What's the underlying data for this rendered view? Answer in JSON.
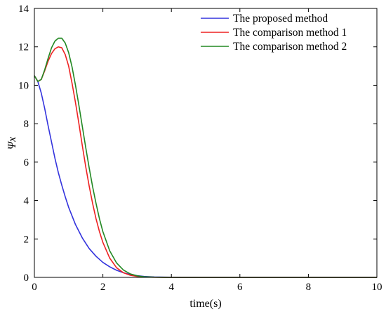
{
  "chart_data": {
    "type": "line",
    "title": "",
    "xlabel": "time(s)",
    "ylabel": "Ψx",
    "xlim": [
      0,
      10
    ],
    "ylim": [
      0,
      14
    ],
    "xticks": [
      0,
      2,
      4,
      6,
      8,
      10
    ],
    "yticks": [
      0,
      2,
      4,
      6,
      8,
      10,
      12,
      14
    ],
    "grid": false,
    "legend_position": "top-right",
    "series": [
      {
        "name": "The proposed method",
        "color": "#3333dd",
        "x": [
          0,
          0.1,
          0.2,
          0.3,
          0.4,
          0.5,
          0.6,
          0.7,
          0.8,
          0.9,
          1.0,
          1.2,
          1.4,
          1.6,
          1.8,
          2.0,
          2.2,
          2.4,
          2.6,
          2.8,
          3.0,
          3.2,
          3.5,
          3.8,
          4.0,
          5.0,
          6.0,
          8.0,
          10.0
        ],
        "y": [
          10.5,
          10.2,
          9.6,
          8.8,
          7.9,
          7.05,
          6.2,
          5.45,
          4.8,
          4.2,
          3.65,
          2.75,
          2.05,
          1.5,
          1.1,
          0.78,
          0.55,
          0.37,
          0.24,
          0.15,
          0.09,
          0.05,
          0.02,
          0.01,
          0.005,
          0,
          0,
          0,
          0
        ]
      },
      {
        "name": "The comparison method 1",
        "color": "#ee2222",
        "x": [
          0,
          0.1,
          0.2,
          0.3,
          0.4,
          0.5,
          0.6,
          0.7,
          0.8,
          0.9,
          1.0,
          1.1,
          1.2,
          1.3,
          1.4,
          1.5,
          1.6,
          1.7,
          1.8,
          1.9,
          2.0,
          2.2,
          2.4,
          2.6,
          2.8,
          3.0,
          3.2,
          3.5,
          3.8,
          4.0,
          5.0,
          6.0,
          8.0,
          10.0
        ],
        "y": [
          10.5,
          10.2,
          10.3,
          10.75,
          11.25,
          11.65,
          11.9,
          12.0,
          11.95,
          11.6,
          11.0,
          10.1,
          9.1,
          8.0,
          6.85,
          5.75,
          4.75,
          3.85,
          3.05,
          2.38,
          1.82,
          1.0,
          0.5,
          0.24,
          0.11,
          0.05,
          0.02,
          0.005,
          0.001,
          0,
          0,
          0,
          0,
          0
        ]
      },
      {
        "name": "The comparison method 2",
        "color": "#228822",
        "x": [
          0,
          0.1,
          0.2,
          0.3,
          0.4,
          0.5,
          0.6,
          0.7,
          0.8,
          0.9,
          1.0,
          1.1,
          1.2,
          1.3,
          1.4,
          1.5,
          1.6,
          1.7,
          1.8,
          1.9,
          2.0,
          2.2,
          2.4,
          2.6,
          2.8,
          3.0,
          3.2,
          3.5,
          3.8,
          4.0,
          5.0,
          6.0,
          8.0,
          10.0
        ],
        "y": [
          10.5,
          10.2,
          10.3,
          10.8,
          11.4,
          11.95,
          12.3,
          12.45,
          12.45,
          12.2,
          11.7,
          10.95,
          10.0,
          8.95,
          7.85,
          6.75,
          5.7,
          4.72,
          3.85,
          3.05,
          2.38,
          1.38,
          0.75,
          0.38,
          0.18,
          0.08,
          0.03,
          0.01,
          0.002,
          0,
          0,
          0,
          0,
          0
        ]
      }
    ]
  }
}
